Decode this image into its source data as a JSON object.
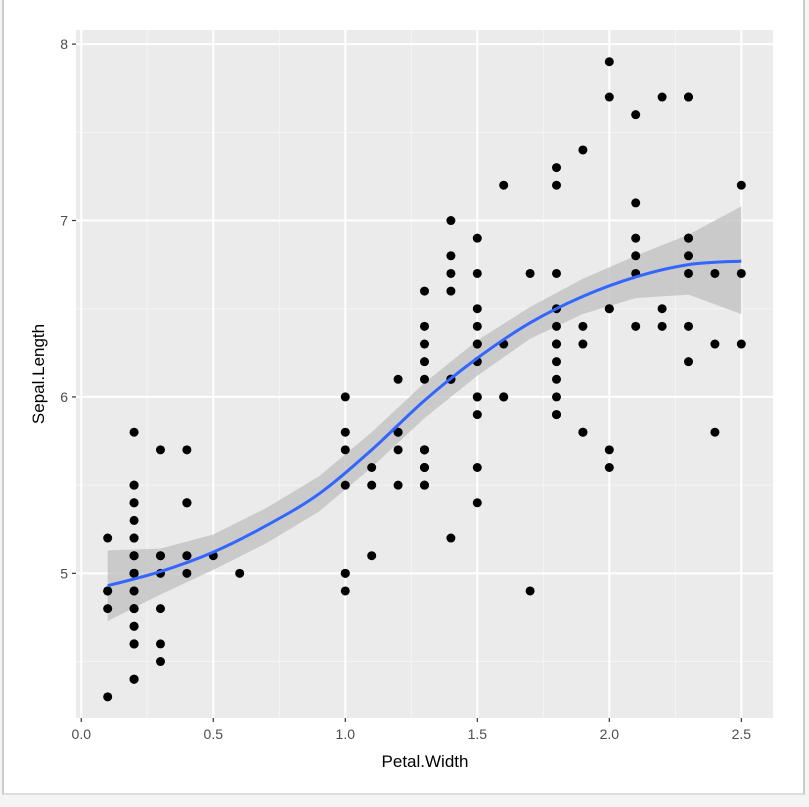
{
  "chart_data": {
    "type": "scatter",
    "title": "",
    "xlabel": "Petal.Width",
    "ylabel": "Sepal.Length",
    "xlim": [
      -0.02,
      2.62
    ],
    "ylim": [
      4.18,
      8.08
    ],
    "xticks": [
      0.0,
      0.5,
      1.0,
      1.5,
      2.0,
      2.5
    ],
    "xtick_labels": [
      "0.0",
      "0.5",
      "1.0",
      "1.5",
      "2.0",
      "2.5"
    ],
    "yticks": [
      5,
      6,
      7,
      8
    ],
    "ytick_labels": [
      "5",
      "6",
      "7",
      "8"
    ],
    "grid": true,
    "colors": {
      "panel": "#ebebeb",
      "grid": "#ffffff",
      "point": "#000000",
      "smooth": "#3366ff",
      "band": "#bfbfbf"
    },
    "points": [
      [
        0.2,
        5.1
      ],
      [
        0.2,
        4.9
      ],
      [
        0.2,
        4.7
      ],
      [
        0.2,
        4.6
      ],
      [
        0.2,
        5.0
      ],
      [
        0.4,
        5.4
      ],
      [
        0.3,
        4.6
      ],
      [
        0.2,
        5.0
      ],
      [
        0.2,
        4.4
      ],
      [
        0.1,
        4.9
      ],
      [
        0.2,
        5.4
      ],
      [
        0.2,
        4.8
      ],
      [
        0.1,
        4.8
      ],
      [
        0.1,
        4.3
      ],
      [
        0.2,
        5.8
      ],
      [
        0.4,
        5.7
      ],
      [
        0.4,
        5.4
      ],
      [
        0.3,
        5.1
      ],
      [
        0.3,
        5.7
      ],
      [
        0.3,
        5.1
      ],
      [
        0.2,
        5.4
      ],
      [
        0.4,
        5.1
      ],
      [
        0.2,
        4.6
      ],
      [
        0.5,
        5.1
      ],
      [
        0.2,
        4.8
      ],
      [
        0.2,
        5.0
      ],
      [
        0.4,
        5.0
      ],
      [
        0.2,
        5.2
      ],
      [
        0.2,
        5.2
      ],
      [
        0.2,
        4.7
      ],
      [
        0.2,
        4.8
      ],
      [
        0.4,
        5.4
      ],
      [
        0.1,
        5.2
      ],
      [
        0.2,
        5.5
      ],
      [
        0.2,
        4.9
      ],
      [
        0.2,
        5.0
      ],
      [
        0.2,
        5.5
      ],
      [
        0.1,
        4.9
      ],
      [
        0.2,
        4.4
      ],
      [
        0.2,
        5.1
      ],
      [
        0.3,
        5.0
      ],
      [
        0.3,
        4.5
      ],
      [
        0.2,
        4.4
      ],
      [
        0.6,
        5.0
      ],
      [
        0.4,
        5.1
      ],
      [
        0.3,
        4.8
      ],
      [
        0.2,
        5.1
      ],
      [
        0.2,
        4.6
      ],
      [
        0.2,
        5.3
      ],
      [
        0.2,
        5.0
      ],
      [
        1.4,
        7.0
      ],
      [
        1.5,
        6.4
      ],
      [
        1.5,
        6.9
      ],
      [
        1.3,
        5.5
      ],
      [
        1.5,
        6.5
      ],
      [
        1.3,
        5.7
      ],
      [
        1.6,
        6.3
      ],
      [
        1.0,
        4.9
      ],
      [
        1.3,
        6.6
      ],
      [
        1.4,
        5.2
      ],
      [
        1.0,
        5.0
      ],
      [
        1.5,
        5.9
      ],
      [
        1.0,
        6.0
      ],
      [
        1.4,
        6.1
      ],
      [
        1.3,
        5.6
      ],
      [
        1.4,
        6.7
      ],
      [
        1.5,
        5.6
      ],
      [
        1.0,
        5.8
      ],
      [
        1.5,
        6.2
      ],
      [
        1.1,
        5.6
      ],
      [
        1.8,
        5.9
      ],
      [
        1.3,
        6.1
      ],
      [
        1.5,
        6.3
      ],
      [
        1.2,
        6.1
      ],
      [
        1.3,
        6.4
      ],
      [
        1.4,
        6.6
      ],
      [
        1.4,
        6.8
      ],
      [
        1.7,
        6.7
      ],
      [
        1.5,
        6.0
      ],
      [
        1.0,
        5.7
      ],
      [
        1.1,
        5.5
      ],
      [
        1.0,
        5.5
      ],
      [
        1.2,
        5.8
      ],
      [
        1.6,
        6.0
      ],
      [
        1.5,
        5.4
      ],
      [
        1.6,
        6.0
      ],
      [
        1.5,
        6.7
      ],
      [
        1.3,
        6.3
      ],
      [
        1.3,
        5.6
      ],
      [
        1.3,
        5.5
      ],
      [
        1.2,
        5.5
      ],
      [
        1.4,
        6.1
      ],
      [
        1.2,
        5.8
      ],
      [
        1.0,
        5.0
      ],
      [
        1.3,
        5.6
      ],
      [
        1.2,
        5.7
      ],
      [
        1.3,
        5.7
      ],
      [
        1.3,
        6.2
      ],
      [
        1.1,
        5.1
      ],
      [
        1.3,
        5.7
      ],
      [
        2.5,
        6.3
      ],
      [
        1.9,
        5.8
      ],
      [
        2.1,
        7.1
      ],
      [
        1.8,
        6.3
      ],
      [
        2.2,
        6.5
      ],
      [
        2.1,
        7.6
      ],
      [
        1.7,
        4.9
      ],
      [
        1.8,
        7.3
      ],
      [
        1.8,
        6.7
      ],
      [
        2.5,
        7.2
      ],
      [
        2.0,
        6.5
      ],
      [
        1.9,
        6.4
      ],
      [
        2.1,
        6.8
      ],
      [
        2.0,
        5.7
      ],
      [
        2.4,
        5.8
      ],
      [
        2.3,
        6.4
      ],
      [
        1.8,
        6.5
      ],
      [
        2.2,
        7.7
      ],
      [
        2.3,
        7.7
      ],
      [
        1.5,
        6.0
      ],
      [
        2.3,
        6.9
      ],
      [
        2.0,
        5.6
      ],
      [
        2.0,
        7.7
      ],
      [
        1.8,
        6.3
      ],
      [
        2.1,
        6.7
      ],
      [
        1.8,
        7.2
      ],
      [
        1.8,
        6.2
      ],
      [
        1.8,
        6.1
      ],
      [
        2.1,
        6.4
      ],
      [
        1.6,
        7.2
      ],
      [
        1.9,
        7.4
      ],
      [
        2.0,
        7.9
      ],
      [
        2.2,
        6.4
      ],
      [
        1.5,
        6.3
      ],
      [
        1.4,
        6.1
      ],
      [
        2.3,
        7.7
      ],
      [
        2.4,
        6.3
      ],
      [
        1.8,
        6.4
      ],
      [
        1.8,
        6.0
      ],
      [
        2.1,
        6.9
      ],
      [
        2.4,
        6.7
      ],
      [
        2.3,
        6.9
      ],
      [
        1.9,
        5.8
      ],
      [
        2.3,
        6.8
      ],
      [
        2.5,
        6.7
      ],
      [
        2.3,
        6.7
      ],
      [
        1.9,
        6.3
      ],
      [
        2.0,
        6.5
      ],
      [
        2.3,
        6.2
      ],
      [
        1.8,
        5.9
      ]
    ],
    "smooth": {
      "method": "loess",
      "x": [
        0.1,
        0.3,
        0.5,
        0.7,
        0.9,
        1.1,
        1.3,
        1.5,
        1.7,
        1.9,
        2.1,
        2.3,
        2.5
      ],
      "y": [
        4.93,
        5.01,
        5.12,
        5.27,
        5.45,
        5.7,
        5.98,
        6.22,
        6.42,
        6.57,
        6.68,
        6.75,
        6.77
      ],
      "lower": [
        4.73,
        4.88,
        5.02,
        5.17,
        5.35,
        5.6,
        5.88,
        6.12,
        6.33,
        6.47,
        6.56,
        6.58,
        6.47
      ],
      "upper": [
        5.13,
        5.14,
        5.22,
        5.37,
        5.55,
        5.8,
        6.08,
        6.32,
        6.51,
        6.67,
        6.8,
        6.92,
        7.08
      ]
    }
  }
}
